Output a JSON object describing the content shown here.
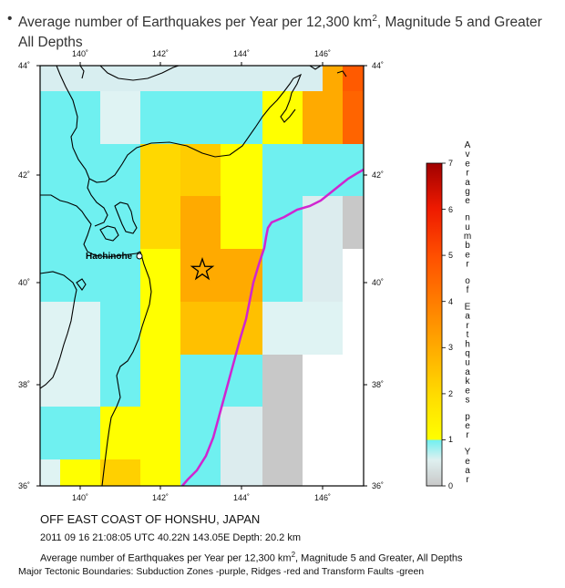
{
  "title": {
    "bullet": "•",
    "text_before_sup": "Average number of Earthquakes per Year per 12,300 km",
    "sup": "2",
    "text_after_sup": ", Magnitude 5 and Greater",
    "line2": "All Depths"
  },
  "map": {
    "lon_ticks": [
      "140˚",
      "142˚",
      "144˚",
      "146˚"
    ],
    "lat_ticks": [
      "44˚",
      "42˚",
      "40˚",
      "38˚",
      "36˚"
    ],
    "city_label": "Hachinohe",
    "epicenter_marker": "star-icon",
    "boundary_color": "#d025d0",
    "land_fill": "#55e8e8",
    "ocean_fill": "#76efef"
  },
  "colorbar": {
    "ticks": [
      "0",
      "1",
      "2",
      "3",
      "4",
      "5",
      "6",
      "7"
    ],
    "vertical_label": "Average number of Earthquakes per Year",
    "stops": [
      "#c8c8c8",
      "#d8eef0",
      "#8af0f0",
      "#ffff00",
      "#ffd200",
      "#ffaa00",
      "#ff7d00",
      "#ff5000",
      "#f02000",
      "#d00000",
      "#a00000"
    ]
  },
  "region_name": "OFF EAST COAST OF HONSHU, JAPAN",
  "event_line": "2011 09 16 21:08:05 UTC 40.22N 143.05E Depth: 20.2 km",
  "caption": {
    "before_sup": "Average number of Earthquakes per Year per 12,300 km",
    "sup": "2",
    "after_sup": ", Magnitude 5 and Greater, All Depths"
  },
  "boundaries_note": "Major Tectonic Boundaries: Subduction Zones -purple, Ridges -red and Transform Faults -green"
}
